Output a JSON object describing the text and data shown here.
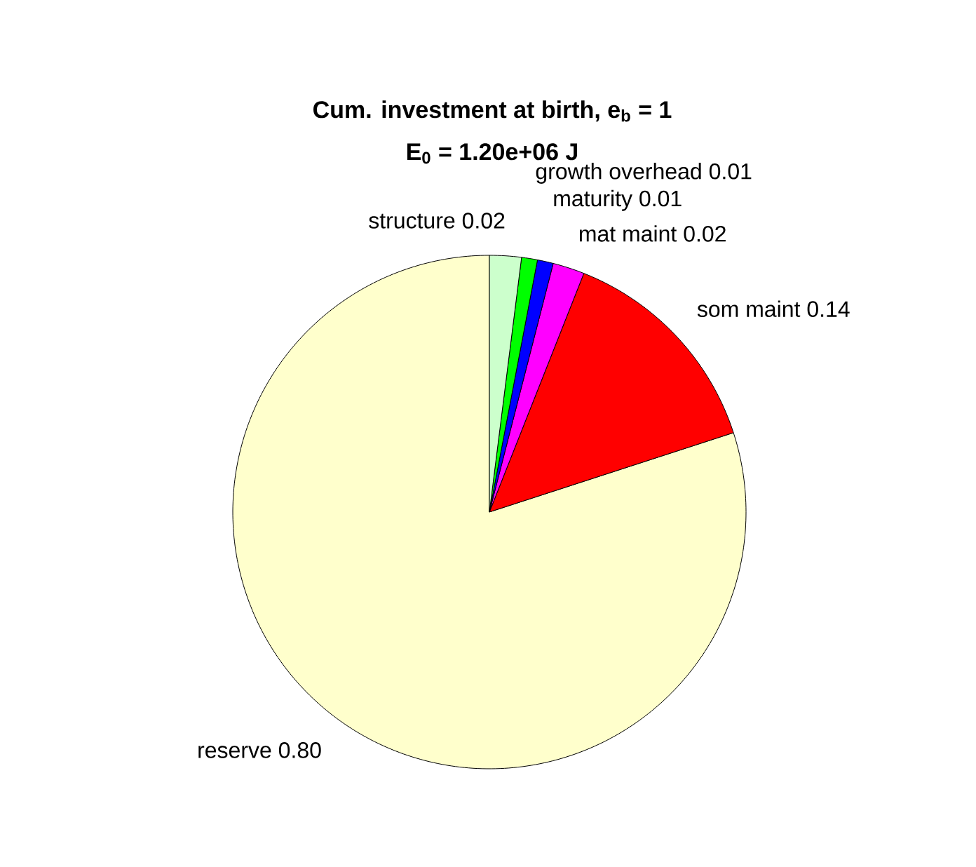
{
  "chart_data": {
    "type": "pie",
    "title": "Cum. investment at birth, e$_{b}$ = 1",
    "subtitle": "E$_{0}$ = 1.20e+06 J",
    "categories": [
      "reserve",
      "som maint",
      "mat maint",
      "maturity",
      "growth overhead",
      "structure"
    ],
    "values": [
      0.8,
      0.14,
      0.02,
      0.01,
      0.01,
      0.02
    ],
    "value_labels": [
      "0.80",
      "0.14",
      "0.02",
      "0.01",
      "0.01",
      "0.02"
    ],
    "colors": [
      "#ffffcc",
      "#ff0000",
      "#ff00ff",
      "#0000ff",
      "#00ff00",
      "#ccffcc"
    ]
  }
}
